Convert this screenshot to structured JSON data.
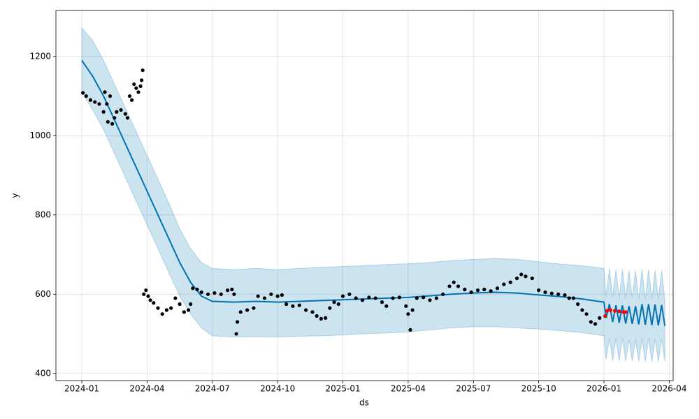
{
  "chart_data": {
    "type": "line",
    "xlabel": "ds",
    "ylabel": "y",
    "xlim": [
      -1.19,
      27.18
    ],
    "ylim": [
      382,
      1316
    ],
    "xticks": [
      {
        "value": 0,
        "label": "2024-01"
      },
      {
        "value": 3,
        "label": "2024-04"
      },
      {
        "value": 6,
        "label": "2024-07"
      },
      {
        "value": 9,
        "label": "2024-10"
      },
      {
        "value": 12,
        "label": "2025-01"
      },
      {
        "value": 15,
        "label": "2025-04"
      },
      {
        "value": 18,
        "label": "2025-07"
      },
      {
        "value": 21,
        "label": "2025-10"
      },
      {
        "value": 24,
        "label": "2026-01"
      },
      {
        "value": 27,
        "label": "2026-04"
      }
    ],
    "yticks": [
      400,
      600,
      800,
      1000,
      1200
    ],
    "grid": true,
    "series": [
      {
        "type": "line",
        "color": "#0072B2",
        "band_color": "#0072B2",
        "x": [
          0,
          0.5,
          1,
          1.5,
          2,
          2.5,
          3,
          3.5,
          4,
          4.5,
          5,
          5.5,
          6,
          7,
          8,
          9,
          10,
          11,
          12,
          13,
          14,
          15,
          16,
          17,
          18,
          19,
          20,
          21,
          22,
          23,
          24,
          24.1,
          24.25,
          24.4,
          24.55,
          24.7,
          24.85,
          25.0,
          25.15,
          25.3,
          25.45,
          25.6,
          25.75,
          25.9,
          26.05,
          26.2,
          26.35,
          26.5,
          26.65,
          26.8
        ],
        "values": [
          1190,
          1150,
          1100,
          1040,
          980,
          920,
          860,
          800,
          740,
          680,
          630,
          595,
          582,
          580,
          582,
          580,
          582,
          584,
          586,
          588,
          590,
          592,
          596,
          600,
          603,
          605,
          603,
          598,
          594,
          588,
          580,
          540,
          575,
          530,
          572,
          528,
          572,
          526,
          570,
          525,
          570,
          524,
          575,
          523,
          575,
          522,
          574,
          521,
          573,
          520
        ],
        "upper": [
          1272,
          1240,
          1190,
          1130,
          1070,
          1010,
          950,
          890,
          830,
          765,
          715,
          680,
          665,
          662,
          665,
          662,
          665,
          668,
          670,
          672,
          675,
          677,
          680,
          685,
          688,
          690,
          688,
          682,
          676,
          672,
          665,
          595,
          665,
          592,
          662,
          590,
          662,
          590,
          660,
          590,
          660,
          588,
          662,
          588,
          662,
          588,
          660,
          586,
          660,
          586
        ],
        "lower": [
          1110,
          1065,
          1015,
          955,
          895,
          835,
          775,
          715,
          655,
          595,
          550,
          515,
          495,
          492,
          493,
          492,
          494,
          495,
          497,
          500,
          502,
          505,
          510,
          515,
          518,
          518,
          515,
          512,
          508,
          503,
          495,
          435,
          490,
          432,
          488,
          432,
          488,
          431,
          486,
          431,
          486,
          430,
          488,
          430,
          488,
          430,
          487,
          430,
          486,
          430
        ]
      },
      {
        "type": "scatter",
        "color": "#000000",
        "x": [
          0.05,
          0.2,
          0.4,
          0.6,
          0.8,
          1.0,
          1.2,
          1.4,
          1.5,
          1.06,
          1.15,
          1.3,
          1.6,
          1.8,
          2.0,
          2.1,
          2.2,
          2.3,
          2.4,
          2.5,
          2.6,
          2.7,
          2.75,
          2.8,
          2.85,
          2.95,
          3.05,
          3.15,
          3.3,
          3.5,
          3.7,
          3.9,
          4.1,
          4.3,
          4.5,
          4.7,
          4.9,
          5.0,
          5.1,
          5.3,
          5.5,
          5.8,
          6.1,
          6.4,
          6.7,
          6.9,
          7.0,
          7.1,
          7.15,
          7.3,
          7.6,
          7.9,
          8.1,
          8.4,
          8.7,
          9.0,
          9.2,
          9.4,
          9.7,
          10.0,
          10.3,
          10.6,
          10.8,
          11.0,
          11.2,
          11.4,
          11.6,
          11.8,
          12.0,
          12.3,
          12.6,
          12.9,
          13.2,
          13.5,
          13.8,
          14.0,
          14.3,
          14.6,
          14.9,
          15.0,
          15.1,
          15.2,
          15.4,
          15.7,
          16.0,
          16.3,
          16.6,
          16.9,
          17.1,
          17.3,
          17.6,
          17.9,
          18.2,
          18.5,
          18.8,
          19.1,
          19.4,
          19.7,
          20.0,
          20.2,
          20.4,
          20.7,
          21.0,
          21.3,
          21.6,
          21.9,
          22.2,
          22.4,
          22.6,
          22.8,
          23.0,
          23.2,
          23.4,
          23.6,
          23.8
        ],
        "values": [
          1108,
          1100,
          1090,
          1085,
          1080,
          1060,
          1035,
          1030,
          1045,
          1110,
          1080,
          1100,
          1060,
          1065,
          1055,
          1045,
          1100,
          1090,
          1130,
          1120,
          1110,
          1125,
          1140,
          1165,
          600,
          610,
          595,
          585,
          578,
          565,
          550,
          560,
          565,
          590,
          575,
          555,
          560,
          575,
          615,
          612,
          605,
          600,
          603,
          600,
          610,
          612,
          600,
          500,
          530,
          555,
          560,
          565,
          595,
          590,
          600,
          595,
          598,
          575,
          570,
          572,
          560,
          555,
          545,
          538,
          540,
          565,
          580,
          575,
          595,
          600,
          590,
          585,
          592,
          590,
          580,
          570,
          590,
          592,
          570,
          550,
          510,
          560,
          590,
          592,
          585,
          590,
          600,
          620,
          630,
          620,
          612,
          605,
          610,
          612,
          608,
          615,
          625,
          630,
          640,
          650,
          645,
          640,
          610,
          605,
          602,
          600,
          598,
          590,
          590,
          575,
          560,
          550,
          530,
          525,
          540
        ]
      },
      {
        "type": "scatter",
        "color": "#ff0000",
        "x": [
          24.05,
          24.15,
          24.3,
          24.5,
          24.7,
          24.9,
          25.0
        ],
        "values": [
          545,
          558,
          560,
          558,
          557,
          555,
          555
        ]
      }
    ]
  }
}
